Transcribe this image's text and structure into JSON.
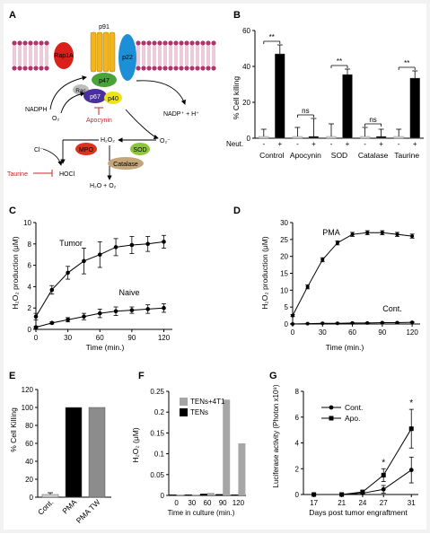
{
  "panel_letters": [
    "A",
    "B",
    "C",
    "D",
    "E",
    "F",
    "G"
  ],
  "diagram": {
    "labels": {
      "p91": "p91",
      "rap1a": "Rap1A",
      "p22": "p22",
      "p47": "p47",
      "rac": "Rac",
      "p67": "p67",
      "p40": "p40",
      "nadph": "NADPH",
      "o2": "O₂",
      "apocynin": "Apocynin",
      "nadp": "NADP⁺ + H⁺",
      "superoxide": "O₂⁻",
      "chloride": "Cl⁻",
      "mpo": "MPO",
      "h2o2": "H₂O₂",
      "sod": "SOD",
      "catalase": "Catalase",
      "taurine": "Taurine",
      "hocl": "HOCl",
      "water": "H₂O + O₂"
    },
    "colors": {
      "membrane": "#b0336c",
      "rap1a": "#d9201b",
      "p22": "#1c8fd6",
      "p91": "#f2b51e",
      "p47": "#49a33a",
      "p67": "#4c2f9e",
      "p40": "#ede31c",
      "rac": "#bdbdbd",
      "mpo": "#e0301e",
      "sod": "#8fc53a",
      "catalase": "#c4a67a",
      "inhibitor": "#c0282d"
    }
  },
  "chart_data": [
    {
      "panel": "B",
      "type": "bar",
      "ylabel": "% Cell killing",
      "ylim": [
        0,
        60
      ],
      "yticks": [
        0,
        20,
        40,
        60
      ],
      "neut_label": "Neut.",
      "neut_values": [
        "-",
        "+",
        "-",
        "+",
        "-",
        "+",
        "-",
        "+",
        "-",
        "+"
      ],
      "groups": [
        "Control",
        "Apocynin",
        "SOD",
        "Catalase",
        "Taurine"
      ],
      "values": [
        1,
        47,
        1,
        1,
        1,
        35.5,
        1,
        1,
        1,
        33.5
      ],
      "errors": [
        4,
        5,
        5,
        10,
        7,
        3,
        5,
        4,
        4,
        4
      ],
      "colors": [
        "#d3d3d3",
        "#000000",
        "#d3d3d3",
        "#000000",
        "#d3d3d3",
        "#000000",
        "#d3d3d3",
        "#000000",
        "#d3d3d3",
        "#000000"
      ],
      "annotations": [
        "**",
        "ns",
        "**",
        "ns",
        "**"
      ]
    },
    {
      "panel": "C",
      "type": "line",
      "xlabel": "Time (min.)",
      "ylabel": "H₂O₂ production (μM)",
      "xlim": [
        0,
        128
      ],
      "ylim": [
        0,
        10
      ],
      "xticks": [
        0,
        30,
        60,
        90,
        120
      ],
      "yticks": [
        0,
        2,
        4,
        6,
        8,
        10
      ],
      "x": [
        0,
        15,
        30,
        45,
        60,
        75,
        90,
        105,
        120
      ],
      "series": [
        {
          "name": "Tumor",
          "values": [
            1.2,
            3.7,
            5.3,
            6.4,
            7.0,
            7.7,
            7.9,
            8.0,
            8.2
          ],
          "errors": [
            0.3,
            0.4,
            0.6,
            1.2,
            1.2,
            0.8,
            0.8,
            0.7,
            0.6
          ]
        },
        {
          "name": "Naive",
          "values": [
            0.2,
            0.6,
            0.9,
            1.2,
            1.5,
            1.7,
            1.8,
            1.9,
            2.0
          ],
          "errors": [
            0.1,
            0.1,
            0.2,
            0.3,
            0.4,
            0.4,
            0.3,
            0.4,
            0.4
          ]
        }
      ]
    },
    {
      "panel": "D",
      "type": "line",
      "xlabel": "Time (min.)",
      "ylabel": "H₂O₂ production (μM)",
      "xlim": [
        0,
        128
      ],
      "ylim": [
        0,
        30
      ],
      "xticks": [
        0,
        30,
        60,
        90,
        120
      ],
      "yticks": [
        0,
        5,
        10,
        15,
        20,
        25,
        30
      ],
      "x": [
        0,
        15,
        30,
        45,
        60,
        75,
        90,
        105,
        120
      ],
      "series": [
        {
          "name": "PMA",
          "values": [
            2.5,
            11,
            19,
            24,
            26.5,
            27,
            27,
            26.5,
            26
          ],
          "errors": [
            0.3,
            0.6,
            0.6,
            0.6,
            0.6,
            0.6,
            0.6,
            0.6,
            0.6
          ]
        },
        {
          "name": "Cont.",
          "values": [
            0,
            0.1,
            0.2,
            0.2,
            0.3,
            0.3,
            0.4,
            0.4,
            0.5
          ],
          "errors": [
            0.1,
            0.1,
            0.1,
            0.1,
            0.1,
            0.1,
            0.1,
            0.1,
            0.1
          ]
        }
      ]
    },
    {
      "panel": "E",
      "type": "bar",
      "ylabel": "% Cell Killing",
      "ylim": [
        0,
        120
      ],
      "yticks": [
        0,
        20,
        40,
        60,
        80,
        100,
        120
      ],
      "categories": [
        "Cont.",
        "PMA",
        "PMA TW"
      ],
      "values": [
        3,
        100,
        100
      ],
      "errors": [
        2,
        0,
        0
      ],
      "colors": [
        "#d3d3d3",
        "#000000",
        "#8c8c8c"
      ]
    },
    {
      "panel": "F",
      "type": "bar",
      "xlabel": "Time in culture (min.)",
      "ylabel": "H₂O₂ (μM)",
      "ylim": [
        0,
        0.25
      ],
      "yticks": [
        0,
        0.05,
        0.1,
        0.15,
        0.2,
        0.25
      ],
      "categories": [
        "0",
        "30",
        "60",
        "90",
        "120"
      ],
      "series": [
        {
          "name": "TENs+4T1",
          "values": [
            0.002,
            0.002,
            0.006,
            0.23,
            0.125
          ],
          "color": "#a6a6a6"
        },
        {
          "name": "TENs",
          "values": [
            0.002,
            0.002,
            0.004,
            0.003,
            0.002
          ],
          "color": "#000000"
        }
      ]
    },
    {
      "panel": "G",
      "type": "line",
      "xlabel": "Days post tumor engraftment",
      "ylabel": "Luciferase activity (Photon x10⁸)",
      "xlim": [
        15.5,
        32
      ],
      "ylim": [
        0,
        8
      ],
      "xticks": [
        17,
        21,
        24,
        27,
        31
      ],
      "yticks": [
        0,
        2,
        4,
        6,
        8
      ],
      "x": [
        17,
        21,
        24,
        27,
        31
      ],
      "series": [
        {
          "name": "Cont.",
          "values": [
            0,
            0,
            0.1,
            0.4,
            1.9
          ],
          "errors": [
            0,
            0,
            0.05,
            0.3,
            1.0
          ]
        },
        {
          "name": "Apo.",
          "values": [
            0,
            0,
            0.2,
            1.5,
            5.1
          ],
          "errors": [
            0,
            0,
            0.1,
            0.5,
            1.5
          ]
        }
      ],
      "annotations": [
        {
          "x": 27,
          "text": "*"
        },
        {
          "x": 31,
          "text": "*"
        }
      ]
    }
  ]
}
